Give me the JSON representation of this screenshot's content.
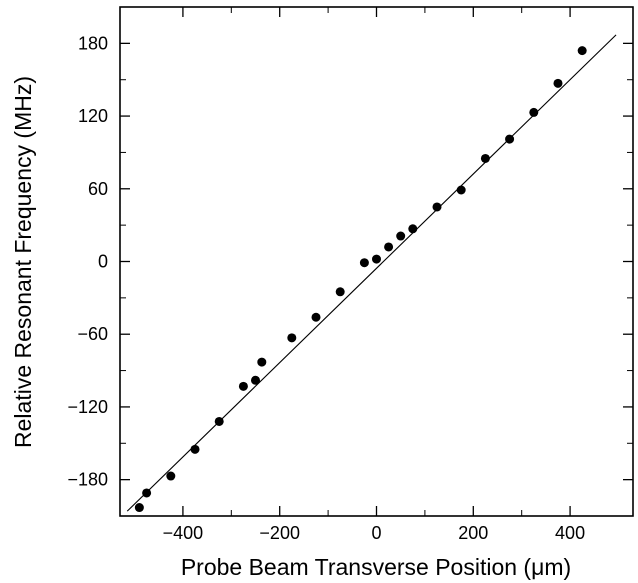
{
  "chart_data": {
    "type": "scatter",
    "title": "",
    "xlabel": "Probe Beam Transverse Position (μm)",
    "ylabel": "Relative Resonant Frequency (MHz)",
    "xlim": [
      -530,
      530
    ],
    "ylim": [
      -210,
      210
    ],
    "xticks": [
      -400,
      -200,
      0,
      200,
      400
    ],
    "xtick_labels": [
      "−400",
      "−200",
      "0",
      "200",
      "400"
    ],
    "yticks": [
      -180,
      -120,
      -60,
      0,
      60,
      120,
      180
    ],
    "ytick_labels": [
      "−180",
      "−120",
      "−60",
      "0",
      "60",
      "120",
      "180"
    ],
    "minor_ticks": true,
    "grid": false,
    "series": [
      {
        "kind": "points",
        "x": [
          -490,
          -475,
          -425,
          -375,
          -325,
          -275,
          -250,
          -237,
          -175,
          -125,
          -75,
          -25,
          0,
          25,
          50,
          75,
          125,
          175,
          225,
          275,
          325,
          375,
          425
        ],
        "y": [
          -203,
          -191,
          -177,
          -155,
          -132,
          -103,
          -98,
          -83,
          -63,
          -46,
          -25,
          -1,
          2,
          12,
          21,
          27,
          45,
          59,
          85,
          101,
          123,
          147,
          174
        ]
      },
      {
        "kind": "fit-line",
        "x": [
          -515,
          495
        ],
        "y": [
          -206,
          187
        ]
      }
    ]
  }
}
